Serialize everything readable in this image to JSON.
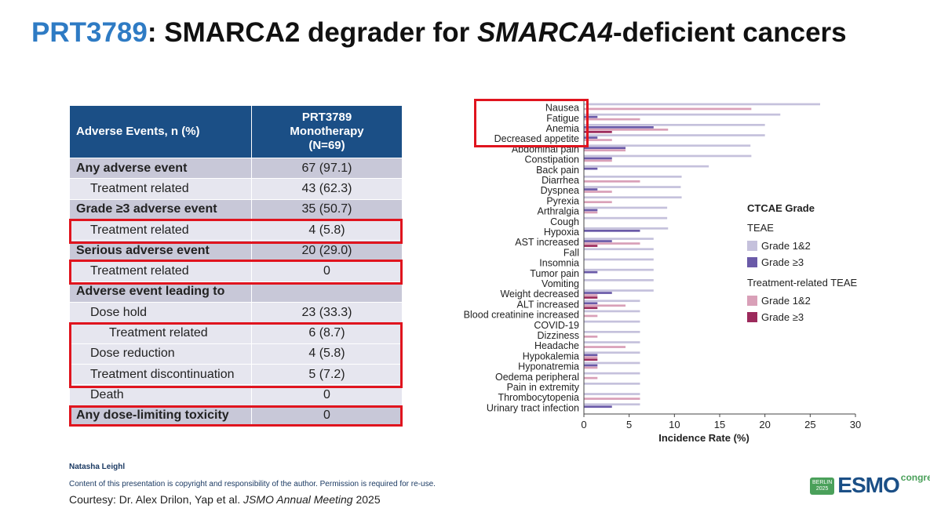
{
  "title": {
    "drug": "PRT3789",
    "part1": ": SMARCA2 degrader for ",
    "gene": "SMARCA4",
    "part2": "-deficient cancers"
  },
  "table": {
    "header_col1": "Adverse Events, n (%)",
    "header_col2": [
      "PRT3789",
      "Monotherapy",
      "(N=69)"
    ],
    "rows": [
      {
        "type": "cat",
        "label": "Any adverse event",
        "value": "67 (97.1)"
      },
      {
        "type": "sub",
        "label": "Treatment related",
        "value": "43 (62.3)"
      },
      {
        "type": "cat",
        "label": "Grade ≥3 adverse event",
        "value": "35 (50.7)"
      },
      {
        "type": "sub",
        "label": "Treatment related",
        "value": "4 (5.8)"
      },
      {
        "type": "cat",
        "label": "Serious adverse event",
        "value": "20 (29.0)"
      },
      {
        "type": "sub",
        "label": "Treatment related",
        "value": "0"
      },
      {
        "type": "cat",
        "label": "Adverse event leading to",
        "value": ""
      },
      {
        "type": "sub",
        "label": "Dose hold",
        "value": "23 (33.3)"
      },
      {
        "type": "sub2",
        "label": "Treatment related",
        "value": "6 (8.7)"
      },
      {
        "type": "sub",
        "label": "Dose reduction",
        "value": "4 (5.8)"
      },
      {
        "type": "sub",
        "label": "Treatment discontinuation",
        "value": "5 (7.2)"
      },
      {
        "type": "sub",
        "label": "Death",
        "value": "0"
      },
      {
        "type": "cat",
        "label": "Any dose-limiting toxicity",
        "value": "0"
      }
    ]
  },
  "legend": {
    "title": "CTCAE Grade",
    "section1": "TEAE",
    "section2": "Treatment-related TEAE",
    "g12": "Grade 1&2",
    "g3": "Grade ≥3"
  },
  "colors": {
    "teae_g12": "#c5c1dc",
    "teae_g3": "#6a5aa8",
    "tr_g12": "#d9a0b8",
    "tr_g3": "#9c2a5c",
    "highlight": "#e0141e",
    "header": "#1b4f86"
  },
  "chart_data": {
    "type": "bar",
    "orientation": "horizontal",
    "xlabel": "Incidence Rate (%)",
    "xlim": [
      0,
      30
    ],
    "xticks": [
      0,
      5,
      10,
      15,
      20,
      25,
      30
    ],
    "categories": [
      "Nausea",
      "Fatigue",
      "Anemia",
      "Decreased appetite",
      "Abdominal pain",
      "Constipation",
      "Back pain",
      "Diarrhea",
      "Dyspnea",
      "Pyrexia",
      "Arthralgia",
      "Cough",
      "Hypoxia",
      "AST increased",
      "Fall",
      "Insomnia",
      "Tumor pain",
      "Vomiting",
      "Weight decreased",
      "ALT increased",
      "Blood creatinine increased",
      "COVID-19",
      "Dizziness",
      "Headache",
      "Hypokalemia",
      "Hyponatremia",
      "Oedema peripheral",
      "Pain in extremity",
      "Thrombocytopenia",
      "Urinary tract infection"
    ],
    "series": [
      {
        "name": "TEAE Grade 1&2",
        "values": [
          26.1,
          21.7,
          20.0,
          20.0,
          18.4,
          18.5,
          13.8,
          10.8,
          10.7,
          10.8,
          9.2,
          9.2,
          9.3,
          7.7,
          7.7,
          7.7,
          7.7,
          7.7,
          7.7,
          6.2,
          6.2,
          6.2,
          6.2,
          6.2,
          6.2,
          6.2,
          6.2,
          6.2,
          6.2,
          6.2
        ]
      },
      {
        "name": "TEAE Grade ≥3",
        "values": [
          0,
          1.5,
          7.7,
          1.5,
          4.6,
          3.1,
          1.5,
          0,
          1.5,
          0,
          1.5,
          0,
          6.2,
          3.1,
          0,
          0,
          1.5,
          0,
          3.1,
          1.5,
          0,
          0,
          0,
          0,
          1.5,
          1.5,
          0,
          0,
          0,
          3.1
        ]
      },
      {
        "name": "Treatment-related TEAE Grade 1&2",
        "values": [
          18.5,
          6.2,
          9.3,
          3.1,
          4.6,
          3.1,
          0,
          6.2,
          3.1,
          3.1,
          1.5,
          0,
          0,
          6.2,
          0,
          0,
          0,
          0,
          1.5,
          4.6,
          1.5,
          0,
          1.5,
          4.6,
          1.5,
          1.5,
          1.5,
          0,
          6.2,
          0
        ]
      },
      {
        "name": "Treatment-related TEAE Grade ≥3",
        "values": [
          0,
          0,
          3.1,
          0,
          0,
          0,
          0,
          0,
          0,
          0,
          0,
          0,
          0,
          1.5,
          0,
          0,
          0,
          0,
          1.5,
          1.5,
          0,
          0,
          0,
          0,
          1.5,
          0,
          0,
          0,
          0,
          0
        ]
      }
    ]
  },
  "footer": {
    "author": "Natasha Leighl",
    "copyright": "Content of this presentation is copyright and responsibility of the author. Permission is required for re-use.",
    "courtesy_prefix": "Courtesy: Dr. Alex Drilon, Yap et al. ",
    "courtesy_journal": "JSMO Annual Meeting",
    "courtesy_year": " 2025"
  },
  "logo": {
    "badge_line1": "BERLIN",
    "badge_line2": "2025",
    "name": "ESMO",
    "suffix": "congress"
  }
}
